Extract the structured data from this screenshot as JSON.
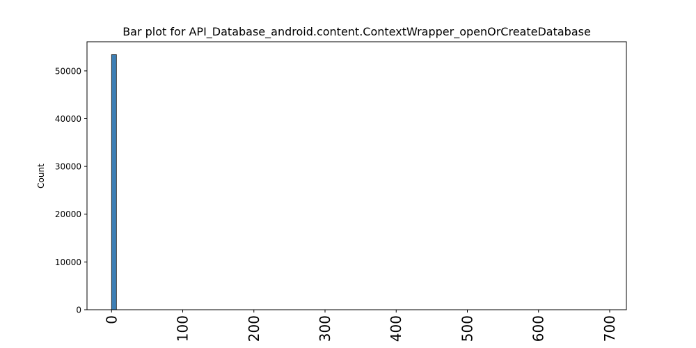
{
  "chart_data": {
    "type": "bar",
    "title": "Bar plot for API_Database_android.content.ContextWrapper_openOrCreateDatabase",
    "xlabel": "",
    "ylabel": "Count",
    "xlim": [
      -34.5,
      723.5
    ],
    "ylim": [
      0,
      56100
    ],
    "x_ticks": [
      0,
      100,
      200,
      300,
      400,
      500,
      600,
      700
    ],
    "y_ticks": [
      0,
      10000,
      20000,
      30000,
      40000,
      50000
    ],
    "bar_color": "#3d7fb5",
    "bar_edge_color": "#1a1a1a",
    "bars": [
      {
        "x_start": 0,
        "x_end": 6.9,
        "value": 53400
      }
    ],
    "grid": false
  }
}
